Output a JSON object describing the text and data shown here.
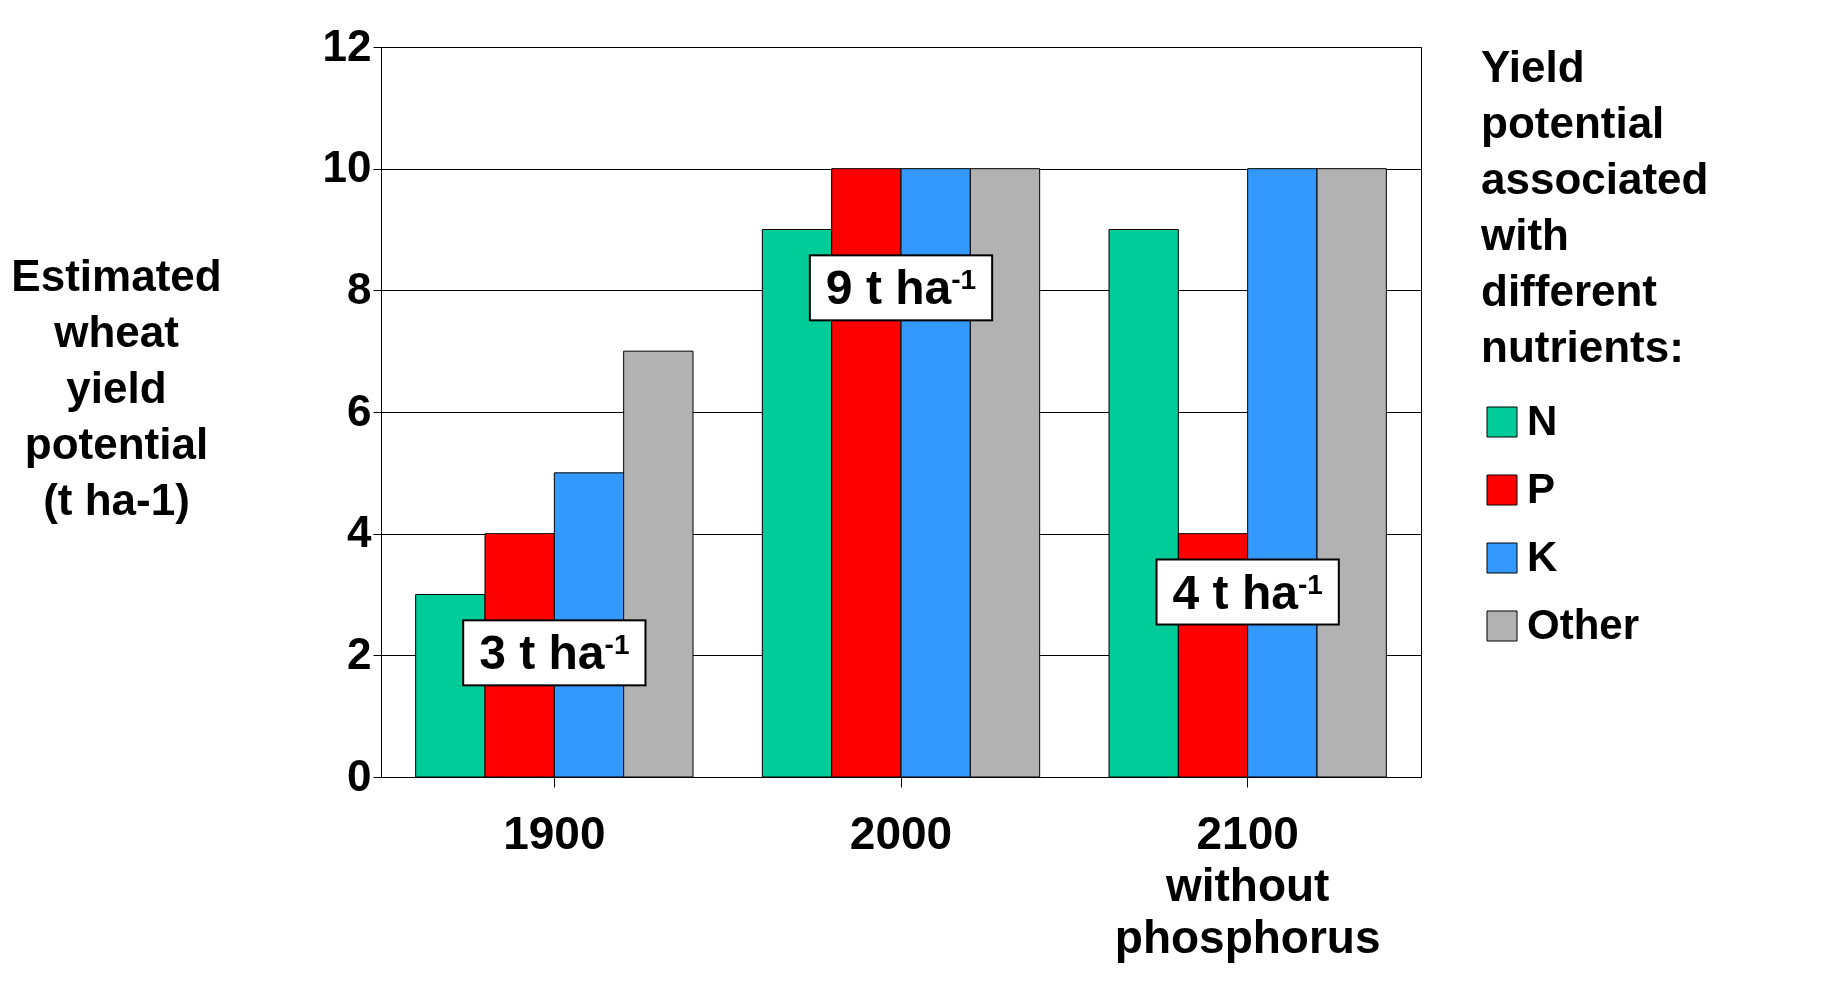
{
  "chart_data": {
    "type": "bar",
    "ylabel": "Estimated wheat yield potential (t ha-1)",
    "legend_title": "Yield potential associated with different nutrients:",
    "categories": [
      "1900",
      "2000",
      "2100 without phosphorus"
    ],
    "series": [
      {
        "name": "N",
        "color": "#00cc99",
        "values": [
          3,
          9,
          9
        ]
      },
      {
        "name": "P",
        "color": "#ff0000",
        "values": [
          4,
          10,
          4
        ]
      },
      {
        "name": "K",
        "color": "#3399ff",
        "values": [
          5,
          10,
          10
        ]
      },
      {
        "name": "Other",
        "color": "#b2b2b2",
        "values": [
          7,
          10,
          10
        ]
      }
    ],
    "annotations": [
      {
        "text": "3 t ha$^{-1}$",
        "x": "1900",
        "y": 2
      },
      {
        "text": "9 t ha$^{-1}$",
        "x": "2000",
        "y": 8
      },
      {
        "text": "4 t ha$^{-1}$",
        "x": "2100 without phosphorus",
        "y": 3
      }
    ],
    "ylim": [
      0,
      12
    ],
    "yticks": [
      0,
      2,
      4,
      6,
      8,
      10,
      12
    ],
    "grid": "y",
    "legend": "right"
  }
}
